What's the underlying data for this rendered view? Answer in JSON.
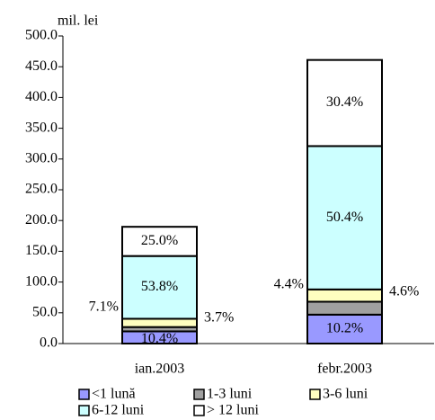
{
  "chart_data": {
    "type": "stacked_bar",
    "y_label": "mil. lei",
    "categories": [
      "ian.2003",
      "febr.2003"
    ],
    "series": [
      {
        "name": "<1 lună",
        "color": "#9999ff",
        "values": [
          19.8,
          47
        ],
        "share_labels": [
          "10.4%",
          "10.2%"
        ]
      },
      {
        "name": "1-3 luni",
        "color": "#a0a0a0",
        "values": [
          7,
          21
        ],
        "share_labels": [
          "3.7%",
          "4.6%"
        ]
      },
      {
        "name": "3-6 luni",
        "color": "#ffffc0",
        "values": [
          13.5,
          20
        ],
        "share_labels": [
          "7.1%",
          "4.4%"
        ]
      },
      {
        "name": "6-12 luni",
        "color": "#ccffff",
        "values": [
          102,
          233
        ],
        "share_labels": [
          "53.8%",
          "50.4%"
        ]
      },
      {
        "name": "> 12 luni",
        "color": "#ffffff",
        "values": [
          47.5,
          140
        ],
        "share_labels": [
          "25.0%",
          "30.4%"
        ]
      }
    ],
    "ylim": [
      0,
      500
    ],
    "yticks": [
      {
        "value": 0,
        "label": "0.0"
      },
      {
        "value": 50,
        "label": "50.0"
      },
      {
        "value": 100,
        "label": "100.0"
      },
      {
        "value": 150,
        "label": "150.0"
      },
      {
        "value": 200,
        "label": "200.0"
      },
      {
        "value": 250,
        "label": "250.0"
      },
      {
        "value": 300,
        "label": "300.0"
      },
      {
        "value": 350,
        "label": "350.0"
      },
      {
        "value": 400,
        "label": "400.0"
      },
      {
        "value": 450,
        "label": "450.0"
      },
      {
        "value": 500,
        "label": "500.0"
      }
    ]
  }
}
